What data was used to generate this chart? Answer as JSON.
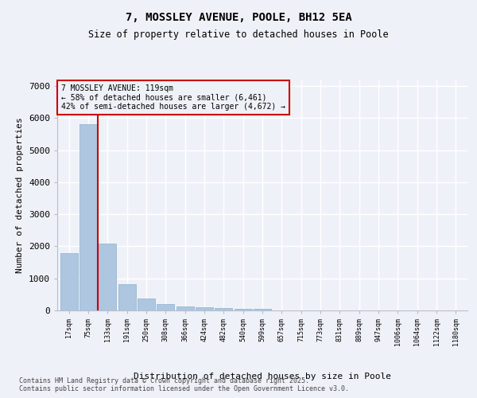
{
  "title1": "7, MOSSLEY AVENUE, POOLE, BH12 5EA",
  "title2": "Size of property relative to detached houses in Poole",
  "xlabel": "Distribution of detached houses by size in Poole",
  "ylabel": "Number of detached properties",
  "categories": [
    "17sqm",
    "75sqm",
    "133sqm",
    "191sqm",
    "250sqm",
    "308sqm",
    "366sqm",
    "424sqm",
    "482sqm",
    "540sqm",
    "599sqm",
    "657sqm",
    "715sqm",
    "773sqm",
    "831sqm",
    "889sqm",
    "947sqm",
    "1006sqm",
    "1064sqm",
    "1122sqm",
    "1180sqm"
  ],
  "values": [
    1780,
    5820,
    2080,
    820,
    370,
    210,
    130,
    90,
    70,
    55,
    45,
    0,
    0,
    0,
    0,
    0,
    0,
    0,
    0,
    0,
    0
  ],
  "bar_color": "#aec6e0",
  "bar_edge_color": "#8ab0d0",
  "vline_x_index": 1.5,
  "vline_color": "#cc0000",
  "annotation_box_text": "7 MOSSLEY AVENUE: 119sqm\n← 58% of detached houses are smaller (6,461)\n42% of semi-detached houses are larger (4,672) →",
  "annotation_box_color": "#cc0000",
  "ylim": [
    0,
    7200
  ],
  "yticks": [
    0,
    1000,
    2000,
    3000,
    4000,
    5000,
    6000,
    7000
  ],
  "background_color": "#eef2f8",
  "grid_color": "#ffffff",
  "footnote1": "Contains HM Land Registry data © Crown copyright and database right 2025.",
  "footnote2": "Contains public sector information licensed under the Open Government Licence v3.0."
}
